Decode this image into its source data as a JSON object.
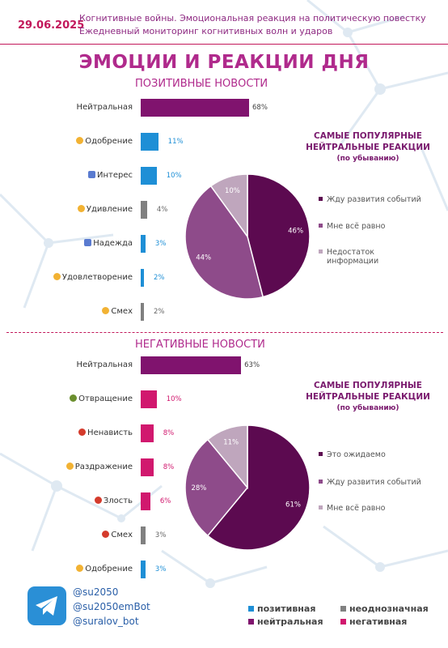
{
  "header": {
    "date": "29.06.2025",
    "line1": "Когнитивные войны. Эмоциональная реакция на политическую повестку",
    "line2": "Ежедневный мониторинг когнитивных волн и ударов"
  },
  "title": "ЭМОЦИИ И РЕАКЦИИ ДНЯ",
  "colors": {
    "positive": "#1e8fd6",
    "ambiguous": "#808080",
    "neutral": "#80136e",
    "negative": "#d1186e",
    "accent": "#b02a8c"
  },
  "chart_data": [
    {
      "type": "bar",
      "orientation": "horizontal",
      "title": "ПОЗИТИВНЫЕ НОВОСТИ",
      "categories": [
        "Нейтральная",
        "Одобрение",
        "Интерес",
        "Удивление",
        "Надежда",
        "Удовлетворение",
        "Смех"
      ],
      "values": [
        68,
        11,
        10,
        4,
        3,
        2,
        2
      ],
      "value_labels": [
        "68%",
        "11%",
        "10%",
        "4%",
        "3%",
        "2%",
        "2%"
      ],
      "bar_types": [
        "neutral",
        "positive",
        "positive",
        "ambiguous",
        "positive",
        "positive",
        "ambiguous"
      ],
      "icons": [
        "",
        "heart-hands-icon",
        "eyes-icon",
        "surprised-face-icon",
        "praying-hands-icon",
        "relieved-face-icon",
        "laughing-face-icon"
      ]
    },
    {
      "type": "pie",
      "title": "САМЫЕ ПОПУЛЯРНЫЕ НЕЙТРАЛЬНЫЕ РЕАКЦИИ",
      "subtitle": "(по убыванию)",
      "categories": [
        "Жду развития событий",
        "Мне всё равно",
        "Недостаток информации"
      ],
      "values": [
        46,
        44,
        10
      ],
      "value_labels": [
        "46%",
        "44%",
        "10%"
      ],
      "colors": [
        "#5c0a50",
        "#8e4b8a",
        "#bfa6bd"
      ]
    },
    {
      "type": "bar",
      "orientation": "horizontal",
      "title": "НЕГАТИВНЫЕ НОВОСТИ",
      "categories": [
        "Нейтральная",
        "Отвращение",
        "Ненависть",
        "Раздражение",
        "Злость",
        "Смех",
        "Одобрение"
      ],
      "values": [
        63,
        10,
        8,
        8,
        6,
        3,
        3
      ],
      "value_labels": [
        "63%",
        "10%",
        "8%",
        "8%",
        "6%",
        "3%",
        "3%"
      ],
      "bar_types": [
        "neutral",
        "negative",
        "negative",
        "negative",
        "negative",
        "ambiguous",
        "positive"
      ],
      "icons": [
        "",
        "nauseated-face-icon",
        "angry-devil-icon",
        "frowning-face-icon",
        "rage-face-icon",
        "smiling-devil-icon",
        "heart-hands-icon"
      ]
    },
    {
      "type": "pie",
      "title": "САМЫЕ ПОПУЛЯРНЫЕ НЕЙТРАЛЬНЫЕ РЕАКЦИИ",
      "subtitle": "(по убыванию)",
      "categories": [
        "Это ожидаемо",
        "Жду развития событий",
        "Мне всё равно"
      ],
      "values": [
        61,
        28,
        11
      ],
      "value_labels": [
        "61%",
        "28%",
        "11%"
      ],
      "colors": [
        "#5c0a50",
        "#8e4b8a",
        "#bfa6bd"
      ]
    }
  ],
  "pie_header": {
    "line1": "САМЫЕ ПОПУЛЯРНЫЕ",
    "line2": "НЕЙТРАЛЬНЫЕ РЕАКЦИИ",
    "line3": "(по убыванию)"
  },
  "footer": {
    "handles": [
      "@su2050",
      "@su2050emBot",
      "@suralov_bot"
    ],
    "legend": [
      {
        "label": "позитивная",
        "color": "#1e8fd6"
      },
      {
        "label": "неоднозначная",
        "color": "#808080"
      },
      {
        "label": "нейтральная",
        "color": "#80136e"
      },
      {
        "label": "негативная",
        "color": "#d1186e"
      }
    ]
  }
}
